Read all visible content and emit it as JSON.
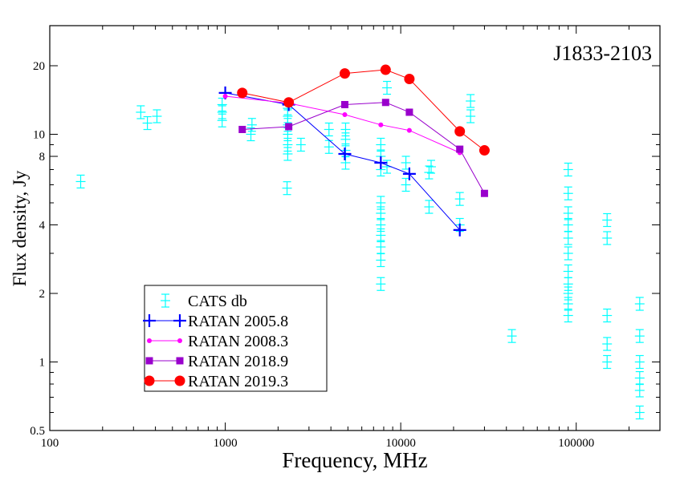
{
  "chart_data": {
    "type": "scatter",
    "title": "",
    "annotation": "J1833-2103",
    "xlabel": "Frequency,  MHz",
    "ylabel": "Flux density, Jy",
    "xscale": "log",
    "yscale": "log",
    "xlim": [
      100,
      300000
    ],
    "ylim": [
      0.5,
      30
    ],
    "xticks": [
      {
        "value": 100,
        "label": "100"
      },
      {
        "value": 1000,
        "label": "1000"
      },
      {
        "value": 10000,
        "label": "10000"
      },
      {
        "value": 100000,
        "label": "100000"
      }
    ],
    "yticks": [
      {
        "value": 0.5,
        "label": "0.5"
      },
      {
        "value": 1,
        "label": "1"
      },
      {
        "value": 2,
        "label": "2"
      },
      {
        "value": 4,
        "label": "4"
      },
      {
        "value": 8,
        "label": "8"
      },
      {
        "value": 10,
        "label": "10"
      },
      {
        "value": 20,
        "label": "20"
      }
    ],
    "grid": false,
    "legend_position": "bottom-left",
    "series": [
      {
        "name": "CATS db",
        "color": "#00ffff",
        "marker": "plus-errorbar",
        "points": [
          [
            150,
            6.2
          ],
          [
            330,
            12.5
          ],
          [
            360,
            11.2
          ],
          [
            408,
            12.0
          ],
          [
            960,
            11.5
          ],
          [
            960,
            12.5
          ],
          [
            960,
            13.5
          ],
          [
            1400,
            10.0
          ],
          [
            1420,
            11.0
          ],
          [
            2250,
            5.8
          ],
          [
            2270,
            8.2
          ],
          [
            2270,
            9.0
          ],
          [
            2270,
            10.0
          ],
          [
            2270,
            11.0
          ],
          [
            2270,
            12.0
          ],
          [
            2270,
            13.0
          ],
          [
            2700,
            9.0
          ],
          [
            3900,
            8.8
          ],
          [
            3900,
            10.5
          ],
          [
            4850,
            7.5
          ],
          [
            4850,
            8.5
          ],
          [
            4850,
            9.5
          ],
          [
            4850,
            10.5
          ],
          [
            7700,
            2.2
          ],
          [
            7700,
            2.8
          ],
          [
            7700,
            3.2
          ],
          [
            7700,
            3.6
          ],
          [
            7700,
            4.0
          ],
          [
            7700,
            4.5
          ],
          [
            7700,
            5.0
          ],
          [
            7700,
            7.0
          ],
          [
            7700,
            8.0
          ],
          [
            7700,
            9.0
          ],
          [
            8350,
            16.0
          ],
          [
            8350,
            7.2
          ],
          [
            10700,
            6.0
          ],
          [
            10700,
            7.5
          ],
          [
            14500,
            4.8
          ],
          [
            14500,
            6.8
          ],
          [
            14900,
            7.2
          ],
          [
            21700,
            5.2
          ],
          [
            21700,
            4.0
          ],
          [
            25000,
            12.0
          ],
          [
            25000,
            14.0
          ],
          [
            43000,
            1.3
          ],
          [
            90000,
            1.6
          ],
          [
            90000,
            1.8
          ],
          [
            90000,
            2.0
          ],
          [
            90000,
            2.2
          ],
          [
            90000,
            2.5
          ],
          [
            90000,
            3.0
          ],
          [
            90000,
            3.5
          ],
          [
            90000,
            4.0
          ],
          [
            90000,
            4.5
          ],
          [
            90000,
            5.5
          ],
          [
            90000,
            7.0
          ],
          [
            150000,
            1.0
          ],
          [
            150000,
            1.2
          ],
          [
            150000,
            1.6
          ],
          [
            150000,
            3.5
          ],
          [
            150000,
            4.2
          ],
          [
            230000,
            0.6
          ],
          [
            230000,
            0.75
          ],
          [
            230000,
            0.85
          ],
          [
            230000,
            1.0
          ],
          [
            230000,
            1.3
          ],
          [
            230000,
            1.8
          ]
        ]
      },
      {
        "name": "RATAN 2005.8",
        "color": "#0000ff",
        "marker": "plus",
        "x": [
          1000,
          2300,
          4800,
          7700,
          11200,
          21700
        ],
        "y": [
          15.2,
          13.5,
          8.2,
          7.5,
          6.7,
          3.8
        ]
      },
      {
        "name": "RATAN 2008.3",
        "color": "#ff00ff",
        "marker": "small-dot",
        "x": [
          1000,
          2300,
          4800,
          7700,
          11200,
          21700
        ],
        "y": [
          14.7,
          13.7,
          12.2,
          11.0,
          10.4,
          8.3
        ]
      },
      {
        "name": "RATAN 2018.9",
        "color": "#9900cc",
        "marker": "square",
        "x": [
          1250,
          2300,
          4800,
          8200,
          11200,
          21700,
          30000
        ],
        "y": [
          10.5,
          10.8,
          13.5,
          13.8,
          12.5,
          8.6,
          5.5
        ]
      },
      {
        "name": "RATAN 2019.3",
        "color": "#ff0000",
        "marker": "circle",
        "x": [
          1250,
          2300,
          4800,
          8200,
          11200,
          21700,
          30000
        ],
        "y": [
          15.2,
          13.8,
          18.5,
          19.2,
          17.5,
          10.3,
          8.5
        ]
      }
    ]
  }
}
